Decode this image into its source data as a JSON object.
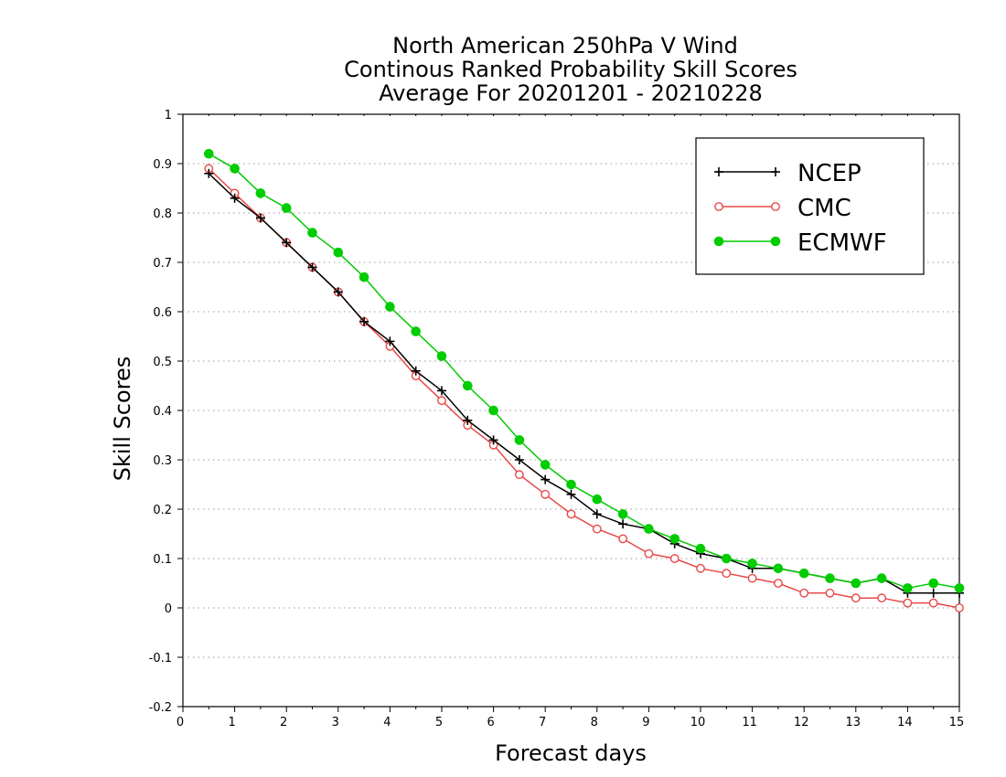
{
  "chart_data": {
    "type": "line",
    "title": [
      "North American 250hPa V Wind",
      "Continous Ranked Probability Skill Scores",
      "Average For 20201201 - 20210228"
    ],
    "xlabel": "Forecast days",
    "ylabel": "Skill Scores",
    "xlim": [
      0,
      15
    ],
    "ylim": [
      -0.2,
      1
    ],
    "x_ticks": [
      "0",
      "1",
      "2",
      "3",
      "4",
      "5",
      "6",
      "7",
      "8",
      "9",
      "10",
      "11",
      "12",
      "13",
      "14",
      "15"
    ],
    "y_ticks": [
      "-0.2",
      "-0.1",
      "0",
      "0.1",
      "0.2",
      "0.3",
      "0.4",
      "0.5",
      "0.6",
      "0.7",
      "0.8",
      "0.9",
      "1"
    ],
    "grid": true,
    "legend_position": "top-right",
    "x": [
      0.5,
      1,
      1.5,
      2,
      2.5,
      3,
      3.5,
      4,
      4.5,
      5,
      5.5,
      6,
      6.5,
      7,
      7.5,
      8,
      8.5,
      9,
      9.5,
      10,
      10.5,
      11,
      11.5,
      12,
      12.5,
      13,
      13.5,
      14,
      14.5,
      15
    ],
    "series": [
      {
        "name": "NCEP",
        "color": "#000000",
        "marker": "plus",
        "values": [
          0.88,
          0.83,
          0.79,
          0.74,
          0.69,
          0.64,
          0.58,
          0.54,
          0.48,
          0.44,
          0.38,
          0.34,
          0.3,
          0.26,
          0.23,
          0.19,
          0.17,
          0.16,
          0.13,
          0.11,
          0.1,
          0.08,
          0.08,
          0.07,
          0.06,
          0.05,
          0.06,
          0.03,
          0.03,
          0.03
        ]
      },
      {
        "name": "CMC",
        "color": "#e84848",
        "marker": "open-circle",
        "values": [
          0.89,
          0.84,
          0.79,
          0.74,
          0.69,
          0.64,
          0.58,
          0.53,
          0.47,
          0.42,
          0.37,
          0.33,
          0.27,
          0.23,
          0.19,
          0.16,
          0.14,
          0.11,
          0.1,
          0.08,
          0.07,
          0.06,
          0.05,
          0.03,
          0.03,
          0.02,
          0.02,
          0.01,
          0.01,
          0.0
        ]
      },
      {
        "name": "ECMWF",
        "color": "#00cc00",
        "marker": "filled-circle",
        "values": [
          0.92,
          0.89,
          0.84,
          0.81,
          0.76,
          0.72,
          0.67,
          0.61,
          0.56,
          0.51,
          0.45,
          0.4,
          0.34,
          0.29,
          0.25,
          0.22,
          0.19,
          0.16,
          0.14,
          0.12,
          0.1,
          0.09,
          0.08,
          0.07,
          0.06,
          0.05,
          0.06,
          0.04,
          0.05,
          0.04
        ]
      }
    ]
  }
}
